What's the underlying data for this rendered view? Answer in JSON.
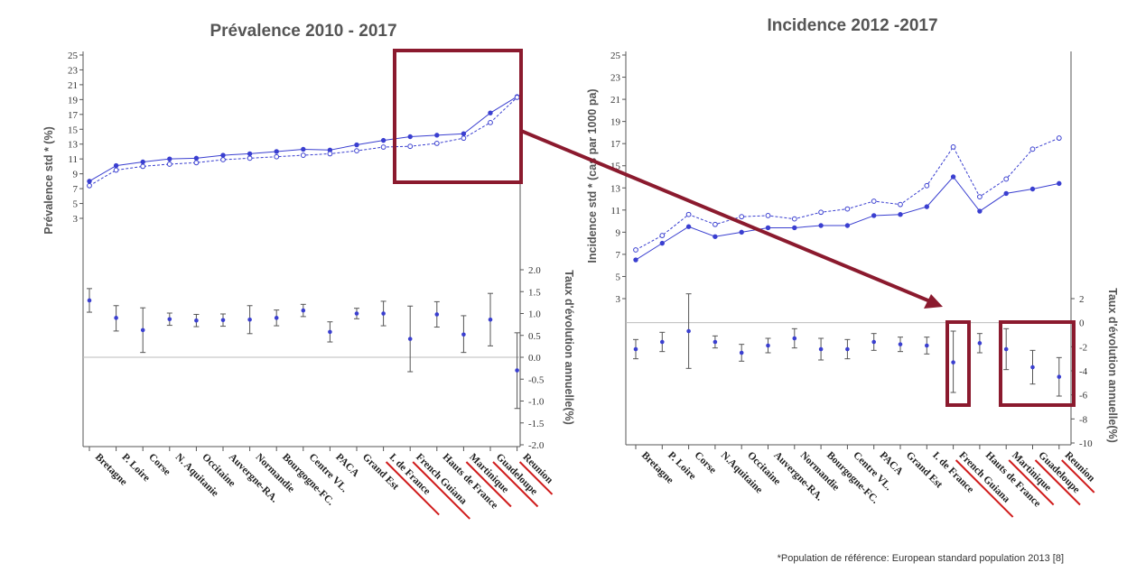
{
  "footnote": "*Population de référence: European standard population 2013 [8]",
  "colors": {
    "series": "#3a3fd0",
    "highlight": "#8b1a2e",
    "axis": "#555555",
    "zero_line": "#bbbbbb",
    "underline": "#d01c1c"
  },
  "chart_data": [
    {
      "type": "line",
      "title": "Prévalence 2010 - 2017",
      "ylabel": "Prévalence std * (%)",
      "ylabel_right": "Taux d'évolution annuelle(%)",
      "categories": [
        "Bretagne",
        "P. Loire",
        "Corse",
        "N. Aquitanie",
        "Occitaine",
        "Auvergne-RA.",
        "Normandie",
        "Bourgogne-FC.",
        "Centre VL.",
        "PACA",
        "Grand Est",
        "I. de France",
        "French Guiana",
        "Hauts de France",
        "Martinique",
        "Guadeloupe",
        "Reunion"
      ],
      "underlined_categories": [
        "I. de France",
        "French Guiana",
        "Martinique",
        "Guadeloupe",
        "Reunion"
      ],
      "yticks": [
        "3",
        "5",
        "7",
        "9",
        "11",
        "13",
        "15",
        "17",
        "19",
        "21",
        "23",
        "25"
      ],
      "yticks_right": [
        "2.0",
        "1.5",
        "1.0",
        "0.5",
        "0.0",
        "-0.5",
        "-1.0",
        "-1.5",
        "-2.0"
      ],
      "series": [
        {
          "style": "solid-filled",
          "values": [
            8.0,
            10.1,
            10.6,
            11.0,
            11.1,
            11.5,
            11.7,
            12.0,
            12.3,
            12.2,
            12.9,
            13.5,
            14.0,
            14.2,
            14.4,
            17.2,
            19.4
          ]
        },
        {
          "style": "dashed-open",
          "values": [
            7.4,
            9.5,
            10.0,
            10.3,
            10.5,
            10.9,
            11.1,
            11.3,
            11.5,
            11.7,
            12.1,
            12.6,
            12.7,
            13.1,
            13.8,
            15.9,
            19.3
          ]
        }
      ],
      "evolution": {
        "mean": [
          1.3,
          0.9,
          0.62,
          0.87,
          0.84,
          0.85,
          0.86,
          0.9,
          1.07,
          0.58,
          1.0,
          1.0,
          0.42,
          0.98,
          0.52,
          0.86,
          -0.3
        ],
        "lower": [
          1.03,
          0.6,
          0.11,
          0.73,
          0.7,
          0.71,
          0.54,
          0.72,
          0.93,
          0.35,
          0.88,
          0.72,
          -0.33,
          0.69,
          0.11,
          0.26,
          -1.17
        ],
        "upper": [
          1.57,
          1.18,
          1.13,
          1.01,
          0.98,
          0.99,
          1.18,
          1.08,
          1.21,
          0.81,
          1.12,
          1.28,
          1.17,
          1.27,
          0.95,
          1.46,
          0.56
        ]
      },
      "ylim": [
        0,
        25
      ],
      "ylim_right": [
        -2.0,
        2.0
      ]
    },
    {
      "type": "line",
      "title": "Incidence 2012 -2017",
      "ylabel": "Incidence std * (cas par 1000 pa)",
      "ylabel_right": "Taux d'évolution annuelle(%)",
      "categories": [
        "Bretagne",
        "P. Loire",
        "Corse",
        "N.Aquitaine",
        "Occitaine",
        "Auvergne-RA.",
        "Normandie",
        "Bourgogne-FC.",
        "Centre VL.",
        "PACA",
        "Grand Est",
        "I. de France",
        "French Guiana",
        "Hauts de France",
        "Martinique",
        "Guadeloupe",
        "Reunion"
      ],
      "underlined_categories": [
        "French Guiana",
        "Martinique",
        "Guadeloupe",
        "Reunion"
      ],
      "yticks": [
        "3",
        "5",
        "7",
        "9",
        "11",
        "13",
        "15",
        "17",
        "19",
        "21",
        "23",
        "25"
      ],
      "yticks_right": [
        "2",
        "0",
        "-2",
        "-4",
        "-6",
        "-8",
        "-10"
      ],
      "series": [
        {
          "style": "solid-filled",
          "values": [
            6.5,
            8.0,
            9.5,
            8.6,
            9.0,
            9.4,
            9.4,
            9.6,
            9.6,
            10.5,
            10.6,
            11.3,
            14.0,
            10.9,
            12.5,
            12.9,
            13.4
          ]
        },
        {
          "style": "dashed-open",
          "values": [
            7.4,
            8.7,
            10.6,
            9.7,
            10.4,
            10.5,
            10.2,
            10.8,
            11.1,
            11.8,
            11.5,
            13.2,
            16.7,
            12.2,
            13.8,
            16.5,
            17.5
          ]
        }
      ],
      "evolution": {
        "mean": [
          -2.2,
          -1.6,
          -0.7,
          -1.6,
          -2.5,
          -1.9,
          -1.3,
          -2.2,
          -2.2,
          -1.6,
          -1.8,
          -1.9,
          -3.3,
          -1.7,
          -2.2,
          -3.7,
          -4.5
        ],
        "lower": [
          -3.0,
          -2.4,
          -3.8,
          -2.1,
          -3.2,
          -2.5,
          -2.1,
          -3.1,
          -3.0,
          -2.3,
          -2.4,
          -2.6,
          -5.8,
          -2.5,
          -3.9,
          -5.1,
          -6.1
        ],
        "upper": [
          -1.4,
          -0.8,
          2.4,
          -1.1,
          -1.8,
          -1.3,
          -0.5,
          -1.3,
          -1.4,
          -0.9,
          -1.2,
          -1.2,
          -0.7,
          -0.9,
          -0.5,
          -2.3,
          -2.9
        ]
      },
      "ylim": [
        0,
        25
      ],
      "ylim_right": [
        -10,
        3
      ]
    }
  ]
}
